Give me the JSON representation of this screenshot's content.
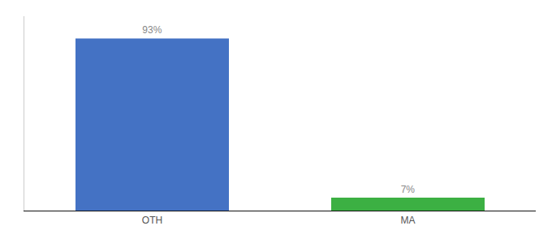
{
  "chart_data": {
    "type": "bar",
    "categories": [
      "OTH",
      "MA"
    ],
    "values": [
      93,
      7
    ],
    "value_labels": [
      "93%",
      "7%"
    ],
    "colors": [
      "#4472c4",
      "#3cb043"
    ],
    "ylim": [
      0,
      105
    ],
    "grid": false,
    "data_labels": true,
    "tick_labels": "x"
  }
}
